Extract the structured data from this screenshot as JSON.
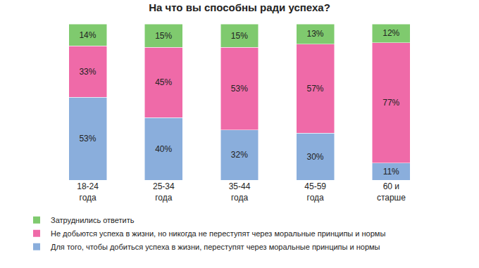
{
  "chart_data": {
    "type": "bar",
    "title": "На что вы способны ради успеха?",
    "stacked": true,
    "data_labels": true,
    "tick_labels": "x",
    "grid": false,
    "legend": "bottom",
    "categories": [
      "18-24 года",
      "25-34 года",
      "35-44 года",
      "45-59 года",
      "60 и старше"
    ],
    "ylim": [
      0,
      100
    ],
    "series": [
      {
        "name": "Для того, чтобы добиться успеха в жизни, переступят через моральные принципы и нормы",
        "color": "#8aaedc",
        "values": [
          53,
          40,
          32,
          30,
          11
        ],
        "value_labels": [
          "53%",
          "40%",
          "32%",
          "30%",
          "11%"
        ]
      },
      {
        "name": "Не добьются успеха в жизни, но никогда не переступят через моральные принципы и нормы",
        "color": "#ef6aa8",
        "values": [
          33,
          45,
          53,
          57,
          77
        ],
        "value_labels": [
          "33%",
          "45%",
          "53%",
          "57%",
          "77%"
        ]
      },
      {
        "name": "Затруднились ответить",
        "color": "#7fca6e",
        "values": [
          14,
          15,
          15,
          13,
          12
        ],
        "value_labels": [
          "14%",
          "15%",
          "15%",
          "13%",
          "12%"
        ]
      }
    ]
  }
}
